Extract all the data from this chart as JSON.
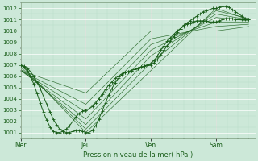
{
  "title": "Pression niveau de la mer( hPa )",
  "ylabel_ticks": [
    1001,
    1002,
    1003,
    1004,
    1005,
    1006,
    1007,
    1008,
    1009,
    1010,
    1011,
    1012
  ],
  "ylim": [
    1000.5,
    1012.5
  ],
  "xlim": [
    0,
    3.6
  ],
  "xtick_positions": [
    0,
    1,
    2,
    3
  ],
  "xtick_labels": [
    "Mer",
    "Jeu",
    "Ven",
    "Sam"
  ],
  "bg_color": "#cce8d8",
  "grid_major_color": "#ffffff",
  "grid_minor_color": "#b8dcc8",
  "line_color": "#1a5e1a",
  "line_width": 0.7,
  "marker": "+",
  "markersize": 2.5,
  "ensemble_lines": [
    {
      "x": [
        0.0,
        1.0,
        2.0,
        3.0,
        3.5
      ],
      "y": [
        1007.0,
        1001.0,
        1006.5,
        1012.0,
        1011.0
      ]
    },
    {
      "x": [
        0.0,
        1.0,
        2.0,
        3.0,
        3.5
      ],
      "y": [
        1006.8,
        1001.3,
        1007.2,
        1011.8,
        1011.1
      ]
    },
    {
      "x": [
        0.0,
        1.0,
        2.0,
        3.0,
        3.5
      ],
      "y": [
        1006.6,
        1001.7,
        1007.8,
        1011.5,
        1011.0
      ]
    },
    {
      "x": [
        0.0,
        1.0,
        2.0,
        3.0,
        3.5
      ],
      "y": [
        1006.5,
        1002.2,
        1008.3,
        1011.2,
        1010.9
      ]
    },
    {
      "x": [
        0.0,
        1.0,
        2.0,
        3.0,
        3.5
      ],
      "y": [
        1006.5,
        1002.8,
        1008.8,
        1010.8,
        1010.8
      ]
    },
    {
      "x": [
        0.0,
        1.0,
        2.0,
        3.0,
        3.5
      ],
      "y": [
        1006.5,
        1003.5,
        1009.3,
        1010.4,
        1010.6
      ]
    },
    {
      "x": [
        0.0,
        1.0,
        2.0,
        3.0,
        3.5
      ],
      "y": [
        1006.5,
        1004.5,
        1010.0,
        1010.0,
        1010.4
      ]
    }
  ],
  "curved_lines": [
    {
      "x": [
        0.0,
        0.05,
        0.1,
        0.15,
        0.2,
        0.25,
        0.3,
        0.35,
        0.4,
        0.45,
        0.5,
        0.55,
        0.6,
        0.65,
        0.7,
        0.75,
        0.8,
        0.85,
        0.9,
        0.95,
        1.0,
        1.05,
        1.1,
        1.15,
        1.2,
        1.25,
        1.3,
        1.35,
        1.4,
        1.45,
        1.5,
        1.55,
        1.6,
        1.65,
        1.7,
        1.75,
        1.8,
        1.85,
        1.9,
        1.95,
        2.0,
        2.05,
        2.1,
        2.15,
        2.2,
        2.25,
        2.3,
        2.35,
        2.4,
        2.45,
        2.5,
        2.55,
        2.6,
        2.65,
        2.7,
        2.75,
        2.8,
        2.85,
        2.9,
        2.95,
        3.0,
        3.05,
        3.1,
        3.15,
        3.2,
        3.25,
        3.3,
        3.35,
        3.4,
        3.45,
        3.5
      ],
      "y": [
        1007.0,
        1006.9,
        1006.7,
        1006.4,
        1006.0,
        1005.5,
        1004.9,
        1004.2,
        1003.5,
        1002.8,
        1002.2,
        1001.7,
        1001.3,
        1001.1,
        1001.0,
        1001.0,
        1001.1,
        1001.2,
        1001.2,
        1001.1,
        1001.0,
        1001.0,
        1001.2,
        1001.6,
        1002.2,
        1002.9,
        1003.6,
        1004.3,
        1004.9,
        1005.4,
        1005.8,
        1006.1,
        1006.3,
        1006.4,
        1006.5,
        1006.6,
        1006.7,
        1006.8,
        1006.9,
        1007.0,
        1007.0,
        1007.2,
        1007.5,
        1007.9,
        1008.3,
        1008.7,
        1009.1,
        1009.5,
        1009.9,
        1010.2,
        1010.5,
        1010.7,
        1010.9,
        1011.1,
        1011.3,
        1011.5,
        1011.7,
        1011.8,
        1011.9,
        1012.0,
        1012.0,
        1012.1,
        1012.2,
        1012.2,
        1012.1,
        1011.9,
        1011.7,
        1011.5,
        1011.3,
        1011.1,
        1011.0
      ]
    },
    {
      "x": [
        0.0,
        0.05,
        0.1,
        0.15,
        0.2,
        0.25,
        0.3,
        0.35,
        0.4,
        0.45,
        0.5,
        0.55,
        0.6,
        0.65,
        0.7,
        0.75,
        0.8,
        0.85,
        0.9,
        0.95,
        1.0,
        1.05,
        1.1,
        1.15,
        1.2,
        1.25,
        1.3,
        1.35,
        1.4,
        1.45,
        1.5,
        1.55,
        1.6,
        1.65,
        1.7,
        1.75,
        1.8,
        1.85,
        1.9,
        1.95,
        2.0,
        2.05,
        2.1,
        2.15,
        2.2,
        2.25,
        2.3,
        2.35,
        2.4,
        2.45,
        2.5,
        2.55,
        2.6,
        2.65,
        2.7,
        2.75,
        2.8,
        2.85,
        2.9,
        2.95,
        3.0,
        3.05,
        3.1,
        3.15,
        3.2,
        3.25,
        3.3,
        3.35,
        3.4,
        3.45,
        3.5
      ],
      "y": [
        1007.0,
        1006.8,
        1006.5,
        1006.0,
        1005.3,
        1004.5,
        1003.6,
        1002.8,
        1002.1,
        1001.5,
        1001.1,
        1001.0,
        1001.0,
        1001.1,
        1001.3,
        1001.6,
        1002.0,
        1002.4,
        1002.7,
        1002.9,
        1003.0,
        1003.1,
        1003.3,
        1003.6,
        1004.0,
        1004.4,
        1004.8,
        1005.2,
        1005.5,
        1005.8,
        1006.0,
        1006.2,
        1006.3,
        1006.4,
        1006.5,
        1006.6,
        1006.7,
        1006.8,
        1006.9,
        1007.0,
        1007.1,
        1007.4,
        1007.8,
        1008.3,
        1008.7,
        1009.1,
        1009.4,
        1009.7,
        1010.0,
        1010.2,
        1010.4,
        1010.6,
        1010.7,
        1010.8,
        1010.9,
        1010.9,
        1010.9,
        1010.9,
        1010.8,
        1010.8,
        1010.8,
        1010.9,
        1011.0,
        1011.1,
        1011.1,
        1011.1,
        1011.0,
        1011.0,
        1011.0,
        1011.0,
        1011.0
      ]
    }
  ]
}
